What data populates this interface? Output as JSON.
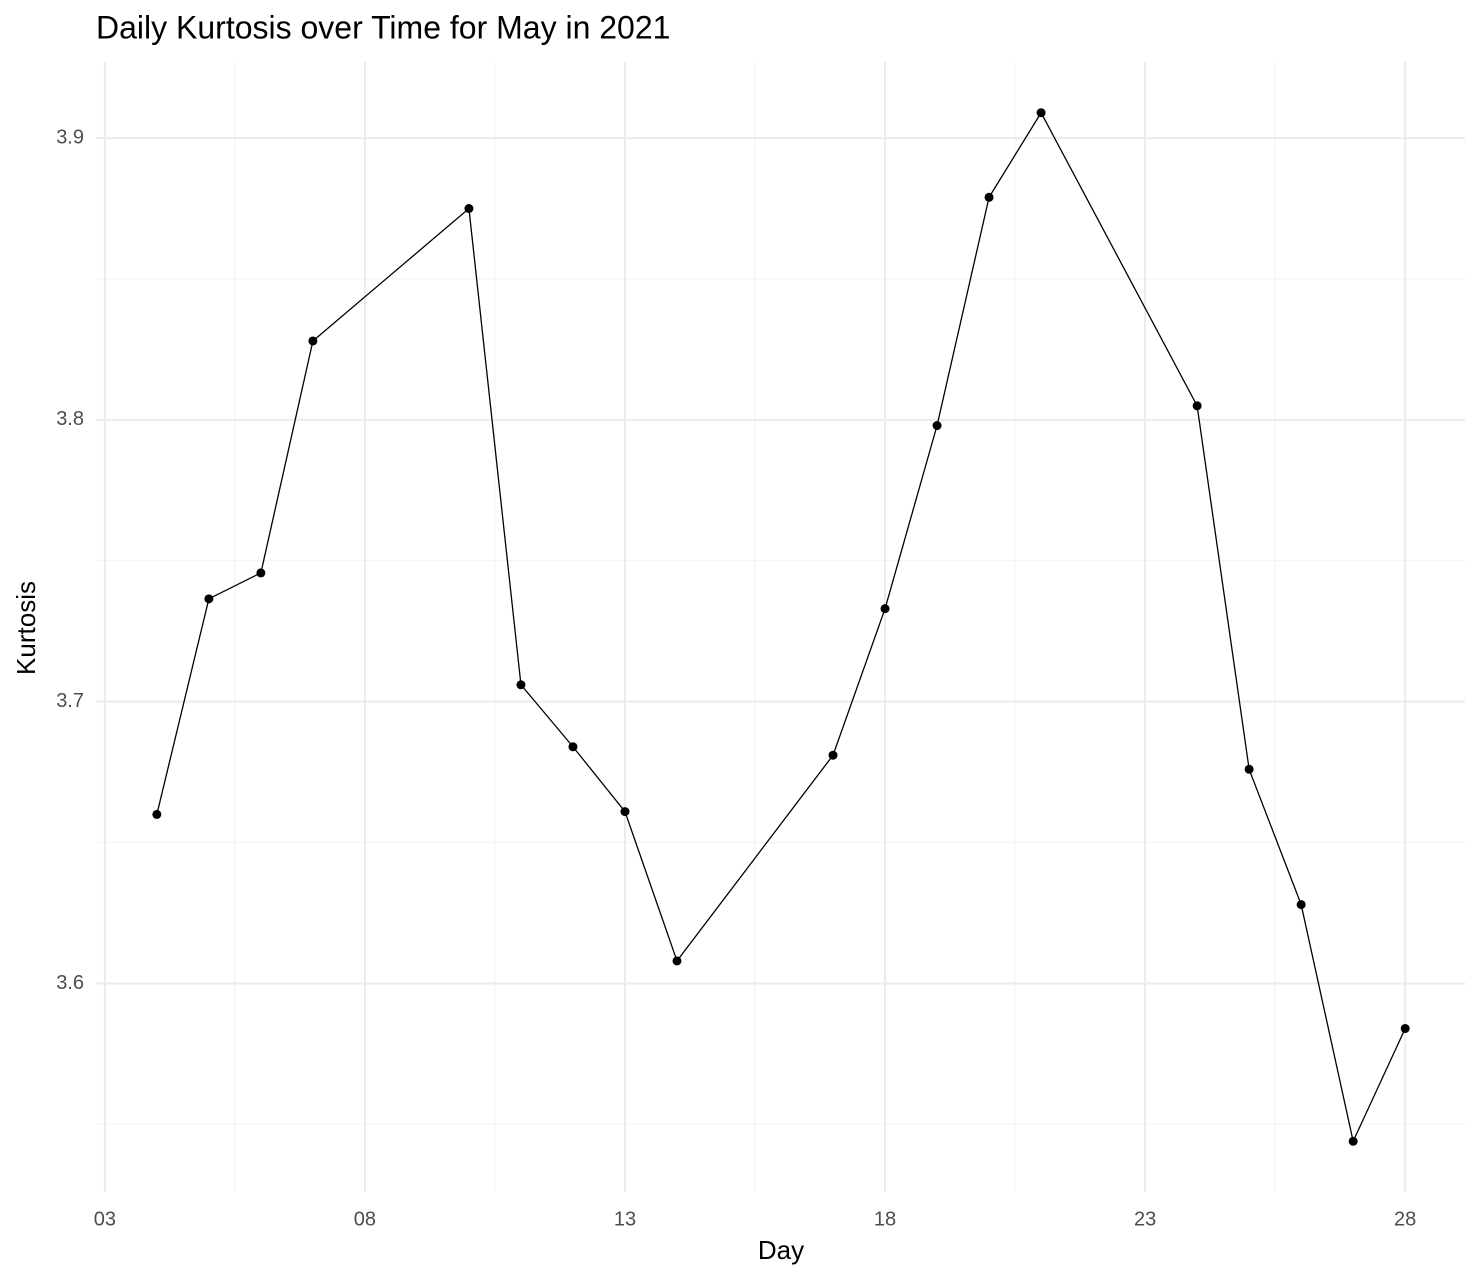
{
  "chart_data": {
    "type": "line",
    "title": "Daily Kurtosis over Time for May in 2021",
    "x_label": "Day",
    "y_label": "Kurtosis",
    "x": [
      4,
      5,
      6,
      7,
      10,
      11,
      12,
      13,
      14,
      17,
      18,
      19,
      20,
      21,
      24,
      25,
      26,
      27,
      28
    ],
    "series": [
      {
        "name": "Kurtosis",
        "color": "#000000",
        "values": [
          3.66,
          3.7365,
          3.7457,
          3.828,
          3.875,
          3.706,
          3.684,
          3.661,
          3.608,
          3.681,
          3.733,
          3.798,
          3.879,
          3.909,
          3.805,
          3.676,
          3.628,
          3.544,
          3.584
        ]
      }
    ],
    "xlim": [
      2.83,
      29.15
    ],
    "xticks": [
      {
        "value": 3,
        "label": "03"
      },
      {
        "value": 8,
        "label": "08"
      },
      13,
      18,
      23,
      28
    ],
    "ylim": [
      3.526,
      3.927
    ],
    "yticks": [
      3.6,
      3.7,
      3.8,
      3.9
    ],
    "grid": true
  }
}
